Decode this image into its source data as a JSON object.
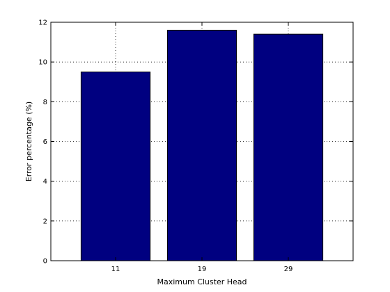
{
  "chart_data": {
    "type": "bar",
    "categories": [
      "11",
      "19",
      "29"
    ],
    "values": [
      9.5,
      11.6,
      11.4
    ],
    "title": "",
    "xlabel": "Maximum Cluster Head",
    "ylabel": "Error percentage (%)",
    "ylim": [
      0,
      12
    ],
    "yticks": [
      "0",
      "2",
      "4",
      "6",
      "8",
      "10",
      "12"
    ],
    "grid": true,
    "bar_color": "#000080",
    "grid_color": "#000000",
    "axis_color": "#000000"
  }
}
